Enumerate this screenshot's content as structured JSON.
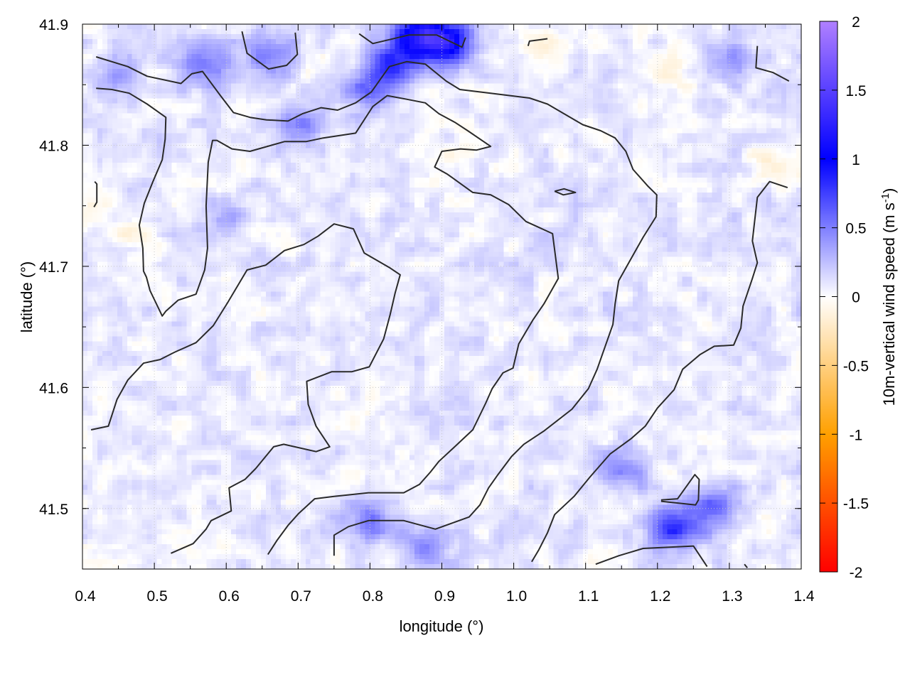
{
  "chart_data": {
    "type": "heatmap",
    "title": "",
    "xlabel": "longitude (°)",
    "ylabel": "latitude (°)",
    "xlim": [
      0.4,
      1.4
    ],
    "ylim": [
      41.45,
      41.9
    ],
    "xticks": [
      "0.4",
      "0.5",
      "0.6",
      "0.7",
      "0.8",
      "0.9",
      "1.0",
      "1.1",
      "1.2",
      "1.3",
      "1.4"
    ],
    "yticks": [
      "41.5",
      "41.6",
      "41.7",
      "41.8",
      "41.9"
    ],
    "grid": true,
    "colorbar": {
      "label": "10m-vertical wind speed (m s",
      "label_sup": "-1",
      "label_end": ")",
      "range": [
        -2,
        2
      ],
      "ticks": [
        "2",
        "1.5",
        "1",
        "0.5",
        "0",
        "-0.5",
        "-1",
        "-1.5",
        "-2"
      ],
      "colors": [
        {
          "value": -2,
          "color": "#ff0000"
        },
        {
          "value": -1,
          "color": "#ffa000"
        },
        {
          "value": 0,
          "color": "#ffffff"
        },
        {
          "value": 1,
          "color": "#0000ff"
        },
        {
          "value": 2,
          "color": "#b080ff"
        }
      ]
    },
    "field_features": [
      {
        "lon": 0.87,
        "lat": 41.89,
        "value": 1.1
      },
      {
        "lon": 0.91,
        "lat": 41.885,
        "value": 0.9
      },
      {
        "lon": 0.83,
        "lat": 41.868,
        "value": 0.6
      },
      {
        "lon": 0.8,
        "lat": 41.845,
        "value": 0.5
      },
      {
        "lon": 0.57,
        "lat": 41.865,
        "value": 0.45
      },
      {
        "lon": 0.66,
        "lat": 41.875,
        "value": 0.4
      },
      {
        "lon": 0.7,
        "lat": 41.815,
        "value": 0.35
      },
      {
        "lon": 0.45,
        "lat": 41.855,
        "value": 0.3
      },
      {
        "lon": 0.6,
        "lat": 41.74,
        "value": 0.25
      },
      {
        "lon": 0.8,
        "lat": 41.49,
        "value": 0.45
      },
      {
        "lon": 0.88,
        "lat": 41.47,
        "value": 0.4
      },
      {
        "lon": 1.22,
        "lat": 41.485,
        "value": 0.7
      },
      {
        "lon": 1.28,
        "lat": 41.5,
        "value": 0.5
      },
      {
        "lon": 1.15,
        "lat": 41.53,
        "value": 0.35
      },
      {
        "lon": 1.3,
        "lat": 41.87,
        "value": 0.35
      },
      {
        "lon": 0.48,
        "lat": 41.72,
        "value": -0.15
      },
      {
        "lon": 1.05,
        "lat": 41.88,
        "value": -0.15
      },
      {
        "lon": 1.36,
        "lat": 41.78,
        "value": -0.2
      },
      {
        "lon": 0.42,
        "lat": 41.75,
        "value": -0.12
      },
      {
        "lon": 0.93,
        "lat": 41.8,
        "value": -0.1
      },
      {
        "lon": 1.23,
        "lat": 41.86,
        "value": -0.15
      }
    ],
    "contours": [
      [
        [
          0.419,
          41.873
        ],
        [
          0.463,
          41.865
        ],
        [
          0.49,
          41.857
        ],
        [
          0.537,
          41.851
        ],
        [
          0.552,
          41.859
        ],
        [
          0.567,
          41.861
        ],
        [
          0.592,
          41.841
        ],
        [
          0.61,
          41.827
        ],
        [
          0.633,
          41.823
        ],
        [
          0.656,
          41.821
        ],
        [
          0.686,
          41.82
        ],
        [
          0.706,
          41.826
        ],
        [
          0.732,
          41.831
        ],
        [
          0.755,
          41.829
        ],
        [
          0.78,
          41.835
        ],
        [
          0.802,
          41.844
        ],
        [
          0.827,
          41.865
        ],
        [
          0.851,
          41.869
        ],
        [
          0.877,
          41.867
        ],
        [
          0.906,
          41.853
        ],
        [
          0.925,
          41.846
        ],
        [
          0.968,
          41.843
        ],
        [
          1.022,
          41.839
        ],
        [
          1.047,
          41.834
        ],
        [
          1.07,
          41.826
        ],
        [
          1.096,
          41.817
        ],
        [
          1.121,
          41.812
        ],
        [
          1.141,
          41.806
        ],
        [
          1.156,
          41.795
        ],
        [
          1.166,
          41.78
        ],
        [
          1.187,
          41.766
        ],
        [
          1.199,
          41.759
        ],
        [
          1.198,
          41.741
        ],
        [
          1.18,
          41.724
        ],
        [
          1.161,
          41.704
        ],
        [
          1.146,
          41.688
        ],
        [
          1.141,
          41.669
        ],
        [
          1.138,
          41.652
        ],
        [
          1.116,
          41.615
        ],
        [
          1.104,
          41.599
        ],
        [
          1.081,
          41.582
        ],
        [
          1.042,
          41.564
        ],
        [
          1.014,
          41.553
        ],
        [
          0.997,
          41.543
        ],
        [
          0.978,
          41.528
        ],
        [
          0.965,
          41.517
        ],
        [
          0.953,
          41.503
        ],
        [
          0.938,
          41.493
        ],
        [
          0.891,
          41.483
        ],
        [
          0.847,
          41.49
        ],
        [
          0.798,
          41.49
        ],
        [
          0.77,
          41.485
        ],
        [
          0.75,
          41.478
        ],
        [
          0.75,
          41.461
        ]
      ],
      [
        [
          0.419,
          41.847
        ],
        [
          0.441,
          41.846
        ],
        [
          0.465,
          41.843
        ],
        [
          0.49,
          41.834
        ],
        [
          0.516,
          41.823
        ],
        [
          0.515,
          41.805
        ],
        [
          0.511,
          41.788
        ],
        [
          0.498,
          41.77
        ],
        [
          0.486,
          41.752
        ],
        [
          0.479,
          41.734
        ],
        [
          0.484,
          41.715
        ],
        [
          0.485,
          41.696
        ],
        [
          0.489,
          41.691
        ],
        [
          0.494,
          41.68
        ],
        [
          0.511,
          41.659
        ],
        [
          0.516,
          41.663
        ],
        [
          0.533,
          41.672
        ],
        [
          0.558,
          41.677
        ],
        [
          0.57,
          41.697
        ],
        [
          0.574,
          41.715
        ],
        [
          0.572,
          41.75
        ],
        [
          0.575,
          41.786
        ],
        [
          0.581,
          41.804
        ],
        [
          0.587,
          41.804
        ],
        [
          0.608,
          41.797
        ],
        [
          0.633,
          41.795
        ],
        [
          0.681,
          41.803
        ],
        [
          0.711,
          41.803
        ],
        [
          0.735,
          41.806
        ],
        [
          0.78,
          41.81
        ],
        [
          0.804,
          41.832
        ],
        [
          0.824,
          41.841
        ],
        [
          0.851,
          41.838
        ],
        [
          0.877,
          41.835
        ],
        [
          0.896,
          41.826
        ],
        [
          0.918,
          41.819
        ],
        [
          0.936,
          41.812
        ],
        [
          0.968,
          41.799
        ],
        [
          0.948,
          41.796
        ],
        [
          0.926,
          41.797
        ],
        [
          0.9,
          41.795
        ],
        [
          0.89,
          41.782
        ],
        [
          0.908,
          41.776
        ],
        [
          0.943,
          41.761
        ],
        [
          0.968,
          41.759
        ],
        [
          0.993,
          41.751
        ],
        [
          1.017,
          41.737
        ],
        [
          1.054,
          41.727
        ],
        [
          1.062,
          41.69
        ],
        [
          1.042,
          41.669
        ],
        [
          1.027,
          41.656
        ],
        [
          1.017,
          41.646
        ],
        [
          1.007,
          41.636
        ],
        [
          0.999,
          41.616
        ],
        [
          0.985,
          41.612
        ],
        [
          0.97,
          41.599
        ],
        [
          0.961,
          41.587
        ],
        [
          0.943,
          41.565
        ],
        [
          0.916,
          41.55
        ],
        [
          0.896,
          41.539
        ],
        [
          0.884,
          41.53
        ],
        [
          0.869,
          41.52
        ],
        [
          0.847,
          41.513
        ],
        [
          0.798,
          41.513
        ],
        [
          0.75,
          41.51
        ],
        [
          0.723,
          41.508
        ],
        [
          0.701,
          41.496
        ],
        [
          0.686,
          41.486
        ],
        [
          0.671,
          41.474
        ],
        [
          0.658,
          41.462
        ]
      ],
      [
        [
          0.412,
          41.565
        ],
        [
          0.436,
          41.568
        ],
        [
          0.448,
          41.59
        ],
        [
          0.463,
          41.606
        ],
        [
          0.485,
          41.62
        ],
        [
          0.508,
          41.623
        ],
        [
          0.528,
          41.629
        ],
        [
          0.558,
          41.637
        ],
        [
          0.582,
          41.651
        ],
        [
          0.602,
          41.67
        ],
        [
          0.629,
          41.697
        ],
        [
          0.655,
          41.701
        ],
        [
          0.681,
          41.713
        ],
        [
          0.708,
          41.718
        ],
        [
          0.728,
          41.725
        ],
        [
          0.75,
          41.735
        ],
        [
          0.777,
          41.731
        ],
        [
          0.792,
          41.711
        ],
        [
          0.827,
          41.699
        ],
        [
          0.842,
          41.693
        ],
        [
          0.835,
          41.678
        ],
        [
          0.828,
          41.66
        ],
        [
          0.819,
          41.64
        ],
        [
          0.799,
          41.617
        ],
        [
          0.775,
          41.613
        ],
        [
          0.747,
          41.613
        ],
        [
          0.712,
          41.605
        ],
        [
          0.714,
          41.586
        ],
        [
          0.725,
          41.568
        ],
        [
          0.744,
          41.551
        ],
        [
          0.725,
          41.547
        ],
        [
          0.68,
          41.553
        ],
        [
          0.666,
          41.551
        ],
        [
          0.641,
          41.533
        ],
        [
          0.626,
          41.524
        ],
        [
          0.604,
          41.517
        ],
        [
          0.607,
          41.498
        ],
        [
          0.579,
          41.49
        ],
        [
          0.572,
          41.483
        ],
        [
          0.554,
          41.471
        ],
        [
          0.523,
          41.463
        ]
      ],
      [
        [
          1.381,
          41.765
        ],
        [
          1.356,
          41.77
        ],
        [
          1.339,
          41.757
        ],
        [
          1.332,
          41.721
        ],
        [
          1.339,
          41.703
        ],
        [
          1.332,
          41.69
        ],
        [
          1.319,
          41.667
        ],
        [
          1.316,
          41.649
        ],
        [
          1.306,
          41.635
        ],
        [
          1.279,
          41.634
        ],
        [
          1.259,
          41.627
        ],
        [
          1.235,
          41.615
        ],
        [
          1.223,
          41.598
        ],
        [
          1.2,
          41.583
        ],
        [
          1.183,
          41.568
        ],
        [
          1.164,
          41.558
        ],
        [
          1.134,
          41.545
        ],
        [
          1.106,
          41.526
        ],
        [
          1.084,
          41.51
        ],
        [
          1.057,
          41.495
        ],
        [
          1.047,
          41.48
        ],
        [
          1.035,
          41.466
        ],
        [
          1.025,
          41.456
        ]
      ],
      [
        [
          1.114,
          41.454
        ],
        [
          1.146,
          41.461
        ],
        [
          1.18,
          41.467
        ],
        [
          1.25,
          41.469
        ],
        [
          1.269,
          41.452
        ]
      ],
      [
        [
          1.205,
          41.507
        ],
        [
          1.228,
          41.508
        ],
        [
          1.252,
          41.528
        ],
        [
          1.258,
          41.524
        ],
        [
          1.257,
          41.507
        ],
        [
          1.253,
          41.503
        ],
        [
          1.205,
          41.506
        ]
      ],
      [
        [
          0.622,
          41.894
        ],
        [
          0.629,
          41.876
        ],
        [
          0.659,
          41.863
        ],
        [
          0.684,
          41.866
        ],
        [
          0.699,
          41.875
        ],
        [
          0.696,
          41.893
        ]
      ],
      [
        [
          0.785,
          41.892
        ],
        [
          0.804,
          41.884
        ],
        [
          0.854,
          41.891
        ],
        [
          0.893,
          41.891
        ],
        [
          0.928,
          41.881
        ],
        [
          0.933,
          41.889
        ]
      ],
      [
        [
          1.02,
          41.882
        ],
        [
          1.022,
          41.886
        ],
        [
          1.047,
          41.888
        ]
      ],
      [
        [
          1.339,
          41.882
        ],
        [
          1.337,
          41.864
        ],
        [
          1.361,
          41.86
        ],
        [
          1.383,
          41.853
        ]
      ],
      [
        [
          0.417,
          41.77
        ],
        [
          0.42,
          41.768
        ],
        [
          0.42,
          41.753
        ],
        [
          0.416,
          41.749
        ]
      ],
      [
        [
          1.057,
          41.762
        ],
        [
          1.07,
          41.764
        ],
        [
          1.086,
          41.761
        ],
        [
          1.069,
          41.759
        ],
        [
          1.057,
          41.762
        ]
      ],
      [
        [
          1.321,
          41.454
        ],
        [
          1.325,
          41.451
        ]
      ]
    ]
  }
}
